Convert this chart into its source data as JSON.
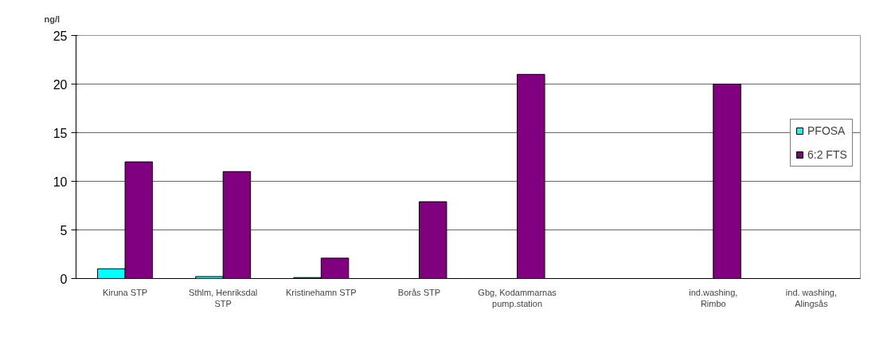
{
  "chart_data": {
    "type": "bar",
    "ylabel": "ng/l",
    "categories": [
      "Kiruna STP",
      "Sthlm, Henriksdal STP",
      "Kristinehamn STP",
      "Borås STP",
      "Gbg, Kodammarnas pump.station",
      null,
      "ind.washing, Rimbo",
      "ind. washing, Alingsås"
    ],
    "series": [
      {
        "name": "PFOSA",
        "color": "#00ffff",
        "values": [
          1.0,
          0.2,
          0.1,
          null,
          null,
          null,
          null,
          null
        ]
      },
      {
        "name": "6:2 FTS",
        "color": "#800080",
        "values": [
          12,
          11,
          2.1,
          7.9,
          21,
          null,
          20,
          null
        ]
      }
    ],
    "ylim": [
      0,
      25
    ],
    "yticks": [
      0,
      5,
      10,
      15,
      20,
      25
    ],
    "grid": "y",
    "legend": "right"
  }
}
